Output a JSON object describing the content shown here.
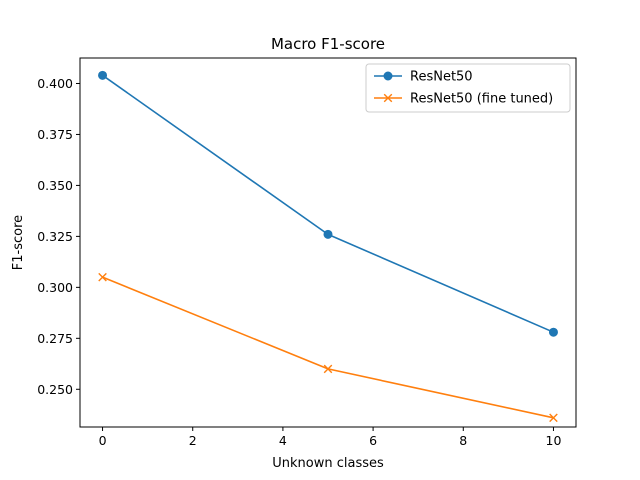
{
  "chart_data": {
    "type": "line",
    "title": "Macro F1-score",
    "xlabel": "Unknown classes",
    "ylabel": "F1-score",
    "xlim": [
      -0.5,
      10.5
    ],
    "ylim": [
      0.2315,
      0.4125
    ],
    "xticks": [
      0,
      2,
      4,
      6,
      8,
      10
    ],
    "yticks": [
      0.25,
      0.275,
      0.3,
      0.325,
      0.35,
      0.375,
      0.4
    ],
    "x": [
      0,
      5,
      10
    ],
    "grid": false,
    "legend_position": "top-right",
    "series": [
      {
        "name": "ResNet50",
        "values": [
          0.404,
          0.326,
          0.278
        ],
        "color": "#1f77b4",
        "marker": "circle"
      },
      {
        "name": "ResNet50 (fine tuned)",
        "values": [
          0.305,
          0.26,
          0.236
        ],
        "color": "#ff7f0e",
        "marker": "x"
      }
    ]
  }
}
